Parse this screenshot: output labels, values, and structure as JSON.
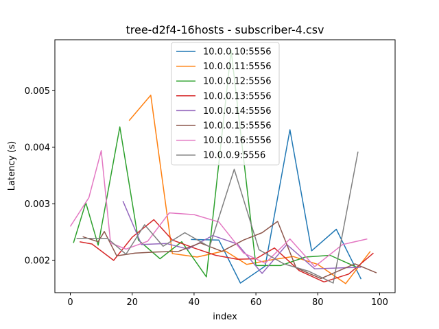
{
  "chart_data": {
    "type": "line",
    "title": "tree-d2f4-16hosts - subscriber-4.csv",
    "xlabel": "index",
    "ylabel": "Latency (s)",
    "xlim": [
      -5,
      105
    ],
    "ylim": [
      0.00143,
      0.0059
    ],
    "xticks": [
      0,
      20,
      40,
      60,
      80,
      100
    ],
    "yticks": [
      0.002,
      0.003,
      0.004,
      0.005
    ],
    "ytick_labels": [
      "0.002",
      "0.003",
      "0.004",
      "0.005"
    ],
    "legend_position": "upper-center",
    "grid": false,
    "series": [
      {
        "name": "10.0.0.10:5556",
        "color": "#1f77b4",
        "x": [
          39,
          48,
          55,
          63,
          71,
          78,
          86,
          94
        ],
        "y": [
          0.00237,
          0.00236,
          0.0016,
          0.0019,
          0.00431,
          0.00217,
          0.00255,
          0.00167
        ]
      },
      {
        "name": "10.0.0.11:5556",
        "color": "#ff7f0e",
        "x": [
          19,
          26,
          33,
          41,
          50,
          57,
          65,
          72,
          80,
          89,
          97
        ],
        "y": [
          0.00447,
          0.00492,
          0.00212,
          0.00206,
          0.00217,
          0.00193,
          0.00201,
          0.00207,
          0.00193,
          0.00159,
          0.00216
        ]
      },
      {
        "name": "10.0.0.12:5556",
        "color": "#2ca02c",
        "x": [
          1,
          5,
          9,
          16,
          22,
          29,
          36,
          44,
          52,
          60,
          68,
          76,
          84,
          93
        ],
        "y": [
          0.00231,
          0.00302,
          0.00227,
          0.00436,
          0.00236,
          0.00203,
          0.00233,
          0.00171,
          0.00571,
          0.00191,
          0.00191,
          0.00206,
          0.00209,
          0.00187
        ]
      },
      {
        "name": "10.0.0.13:5556",
        "color": "#d62728",
        "x": [
          3,
          7,
          14,
          20,
          27,
          33,
          40,
          47,
          54,
          60,
          66,
          74,
          82,
          90,
          98
        ],
        "y": [
          0.00233,
          0.00229,
          0.002,
          0.00241,
          0.00272,
          0.00236,
          0.00222,
          0.00209,
          0.00202,
          0.00203,
          0.00222,
          0.00182,
          0.00162,
          0.00176,
          0.00213
        ]
      },
      {
        "name": "10.0.0.14:5556",
        "color": "#9467bd",
        "x": [
          17,
          23,
          31,
          38,
          46,
          54,
          62,
          70,
          79,
          88,
          94
        ],
        "y": [
          0.00305,
          0.00228,
          0.0023,
          0.0022,
          0.00244,
          0.00229,
          0.00177,
          0.00228,
          0.00185,
          0.00187,
          0.00188
        ]
      },
      {
        "name": "10.0.0.15:5556",
        "color": "#8c564b",
        "x": [
          4,
          9,
          11,
          15,
          21,
          28,
          35,
          42,
          49,
          56,
          62,
          67,
          73,
          81,
          92,
          99
        ],
        "y": [
          0.00242,
          0.00233,
          0.00251,
          0.00208,
          0.00213,
          0.00215,
          0.00216,
          0.00231,
          0.00216,
          0.00236,
          0.00249,
          0.00269,
          0.00187,
          0.00168,
          0.00194,
          0.00178
        ]
      },
      {
        "name": "10.0.0.16:5556",
        "color": "#e377c2",
        "x": [
          0,
          6,
          10,
          13,
          18,
          25,
          32,
          40,
          48,
          56,
          63,
          71,
          79,
          88,
          96
        ],
        "y": [
          0.0026,
          0.00311,
          0.00394,
          0.00231,
          0.0022,
          0.00234,
          0.00284,
          0.00281,
          0.00268,
          0.00213,
          0.00195,
          0.00238,
          0.00189,
          0.00228,
          0.00238
        ]
      },
      {
        "name": "10.0.0.9:5556",
        "color": "#7f7f7f",
        "x": [
          2,
          12,
          18,
          24,
          30,
          37,
          45,
          53,
          61,
          69,
          77,
          85,
          93
        ],
        "y": [
          0.00239,
          0.00239,
          0.00211,
          0.00263,
          0.00225,
          0.00249,
          0.00224,
          0.00361,
          0.00219,
          0.00194,
          0.00181,
          0.0016,
          0.00392
        ]
      }
    ]
  }
}
